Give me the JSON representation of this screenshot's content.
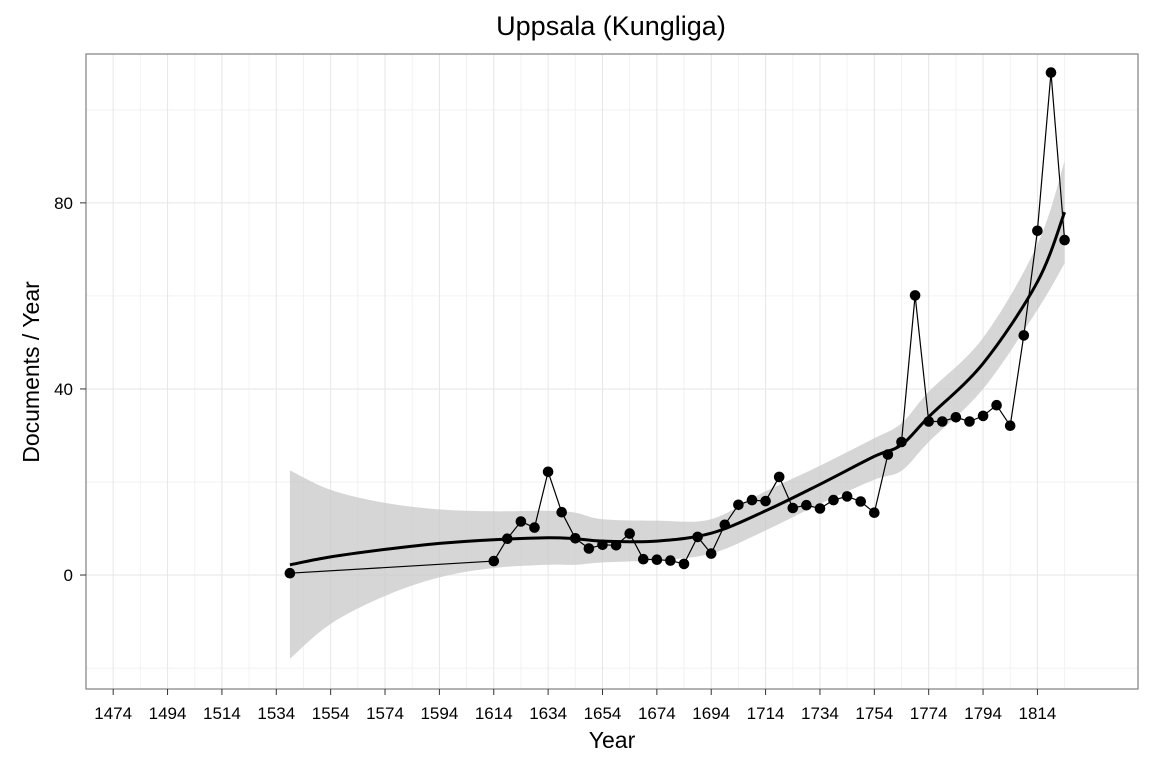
{
  "chart_data": {
    "type": "line",
    "title": "Uppsala (Kungliga)",
    "xlabel": "Year",
    "ylabel": "Documents / Year",
    "x_ticks": [
      1474,
      1494,
      1514,
      1534,
      1554,
      1574,
      1594,
      1614,
      1634,
      1654,
      1674,
      1694,
      1714,
      1734,
      1754,
      1774,
      1794,
      1814
    ],
    "y_ticks": [
      0,
      40,
      80
    ],
    "xlim": [
      1464,
      1851
    ],
    "ylim": [
      -24.5,
      112
    ],
    "grid": true,
    "series": [
      {
        "type": "line+points",
        "x": [
          1539,
          1614,
          1619,
          1624,
          1629,
          1634,
          1639,
          1644,
          1649,
          1654,
          1659,
          1664,
          1669,
          1674,
          1679,
          1684,
          1689,
          1694,
          1699,
          1704,
          1709,
          1714,
          1719,
          1724,
          1729,
          1734,
          1739,
          1744,
          1749,
          1754,
          1759,
          1764,
          1769,
          1774,
          1779,
          1784,
          1789,
          1794,
          1799,
          1804,
          1809,
          1814,
          1819,
          1824
        ],
        "y": [
          0.4,
          3,
          7.8,
          11.5,
          10.2,
          22.2,
          13.5,
          7.9,
          5.7,
          6.5,
          6.4,
          8.9,
          3.4,
          3.3,
          3.1,
          2.4,
          8.2,
          4.6,
          10.8,
          15.1,
          16.1,
          15.9,
          21.1,
          14.4,
          15.0,
          14.3,
          16.1,
          16.9,
          15.8,
          13.4,
          25.9,
          28.6,
          60.1,
          33.0,
          33.0,
          33.9,
          33.0,
          34.2,
          36.5,
          32.1,
          51.5,
          74.0,
          108.0,
          72.0
        ]
      },
      {
        "type": "smooth",
        "x": [
          1539,
          1554,
          1574,
          1594,
          1614,
          1634,
          1644,
          1654,
          1674,
          1694,
          1714,
          1734,
          1754,
          1764,
          1774,
          1794,
          1814,
          1824
        ],
        "y": [
          2.2,
          3.9,
          5.5,
          6.8,
          7.6,
          8.0,
          7.8,
          7.3,
          7.3,
          9.0,
          13.8,
          19.5,
          25.5,
          28.0,
          34.0,
          45.5,
          63.0,
          78.0
        ],
        "lower": [
          -18.0,
          -10.5,
          -4.5,
          -0.5,
          1.5,
          2.2,
          2.2,
          2.7,
          3.2,
          4.6,
          9.6,
          15.3,
          20.5,
          22.4,
          28.6,
          40.0,
          57.0,
          67.0
        ],
        "upper": [
          22.5,
          18.3,
          15.5,
          14.1,
          13.7,
          13.8,
          13.4,
          12.0,
          11.7,
          12.0,
          18.0,
          23.5,
          29.4,
          32.6,
          39.4,
          51.0,
          71.0,
          89.0
        ]
      }
    ]
  }
}
